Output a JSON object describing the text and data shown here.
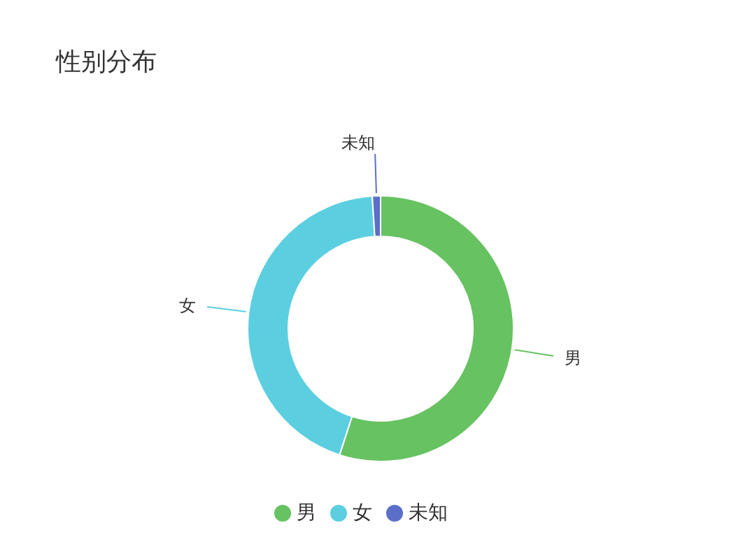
{
  "chart_data": {
    "type": "donut",
    "title": "性别分布",
    "categories": [
      "男",
      "女",
      "未知"
    ],
    "values": [
      55,
      44,
      1
    ],
    "colors": [
      "#67c262",
      "#5bcfe0",
      "#5b6ec8"
    ],
    "legend": "bottom"
  }
}
